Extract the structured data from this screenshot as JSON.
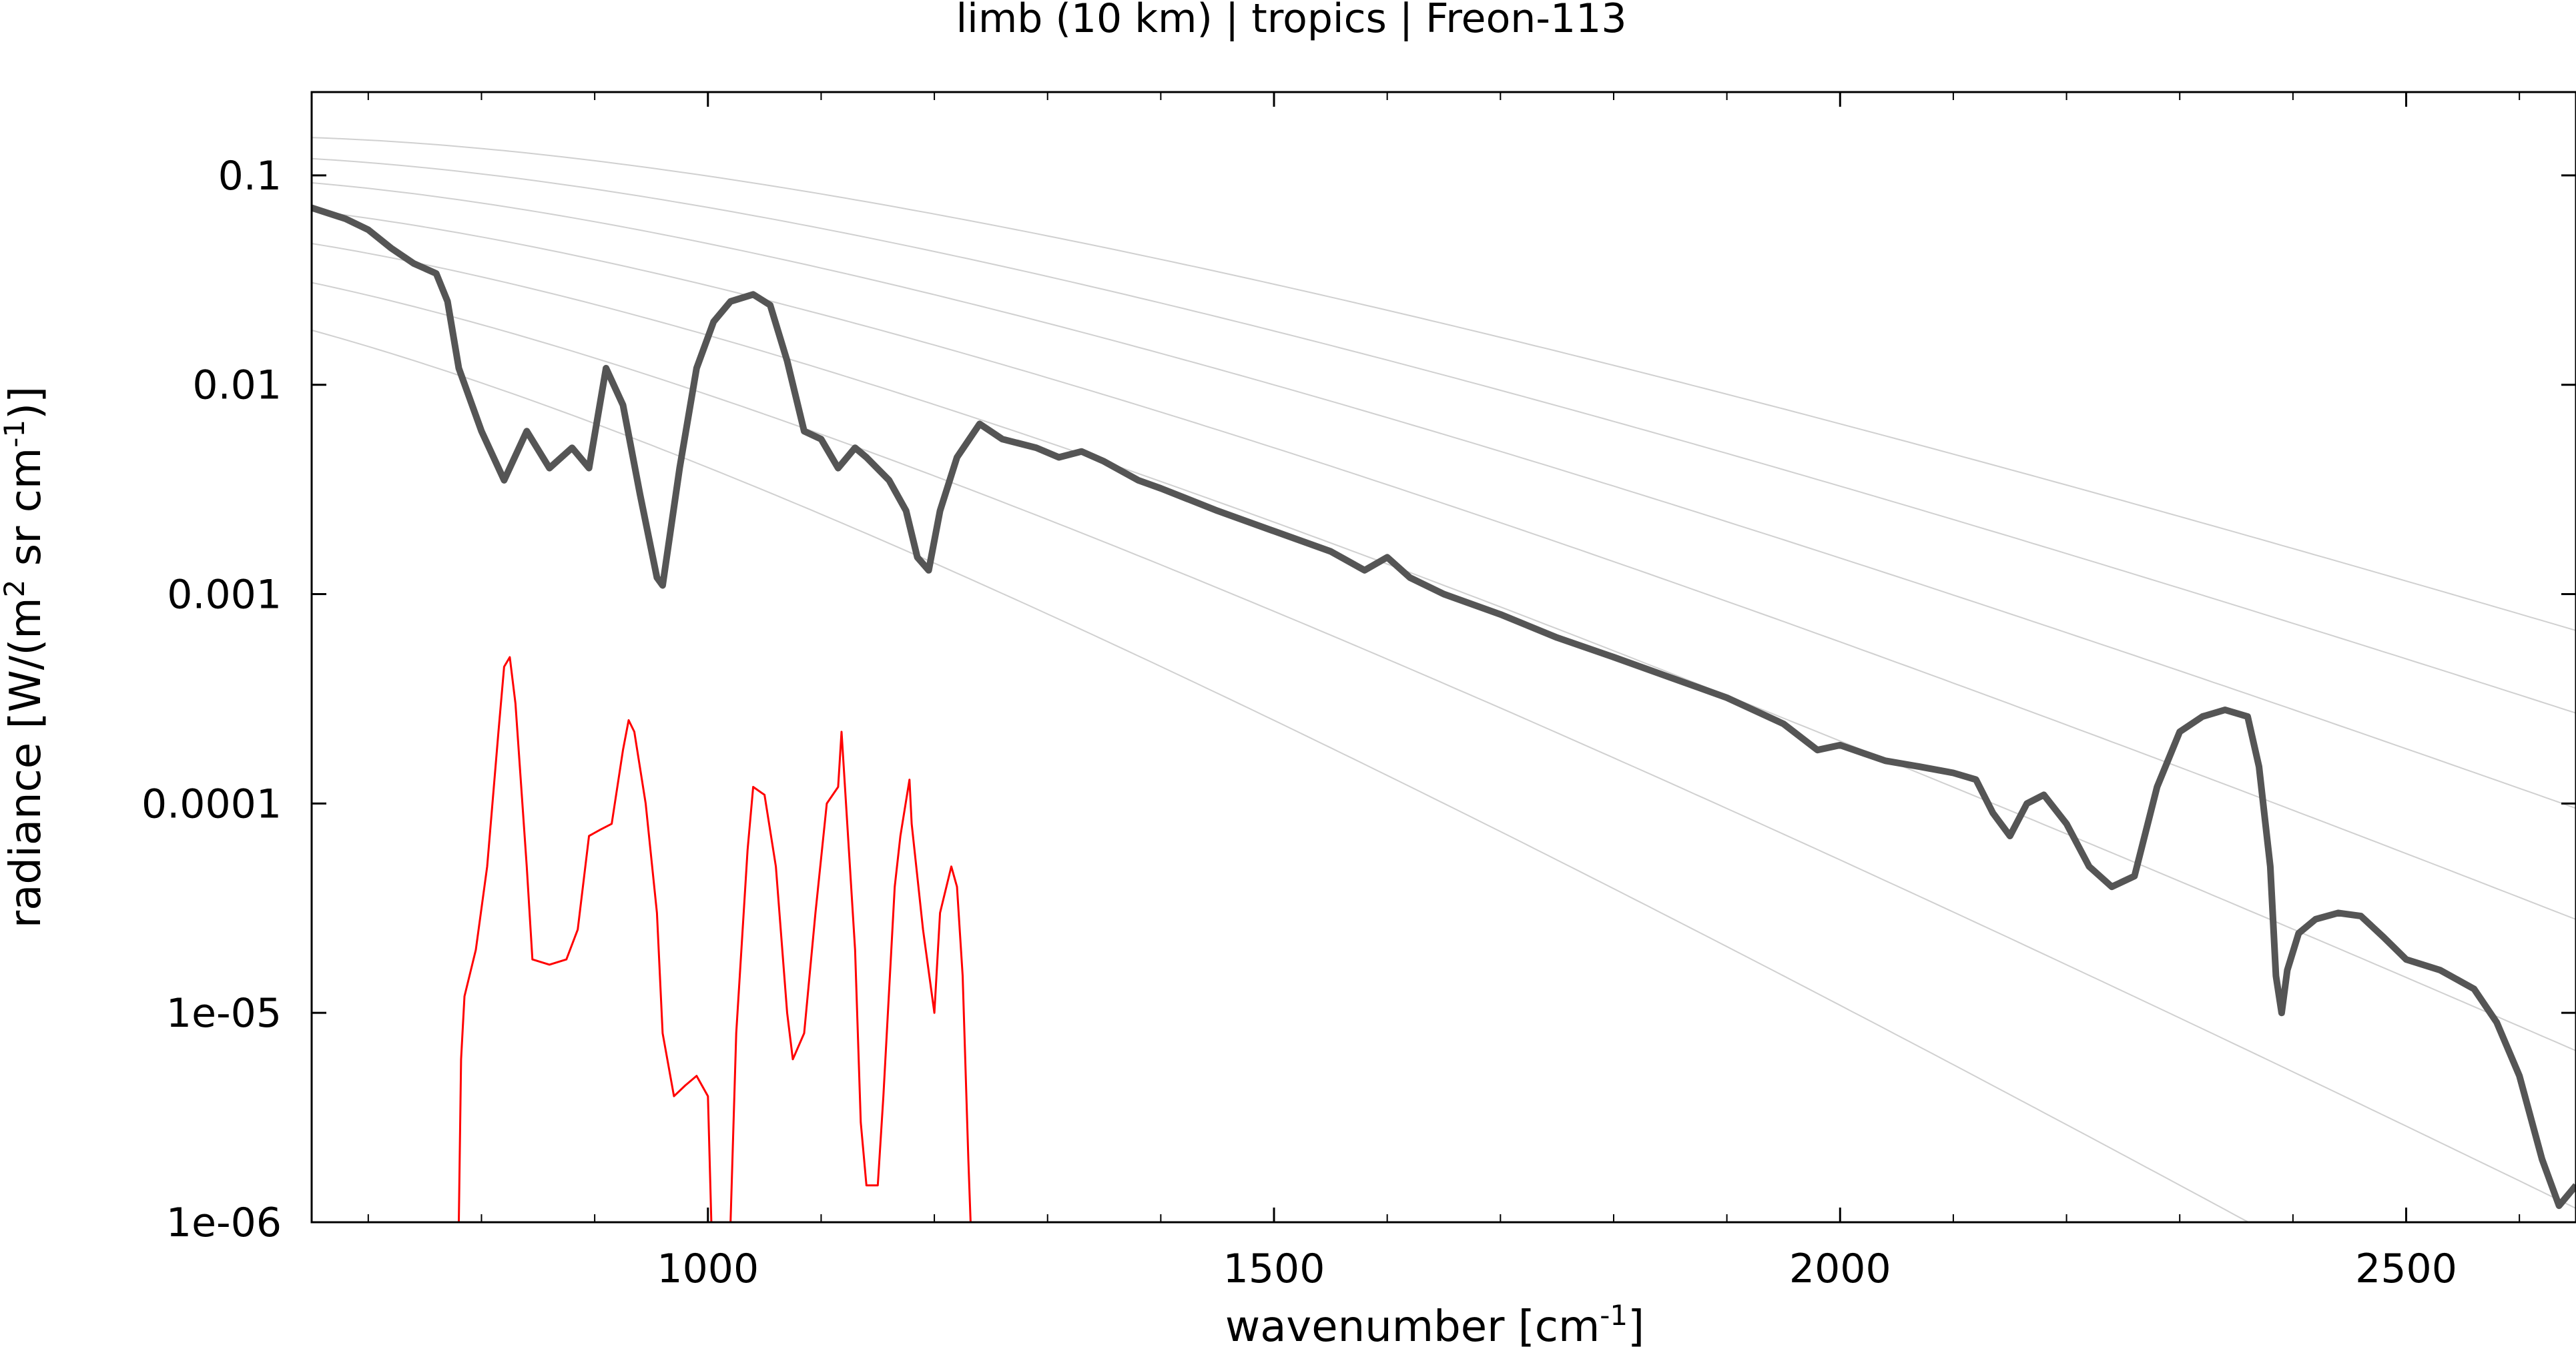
{
  "chart_data": {
    "type": "line",
    "title": "limb (10 km) | tropics | Freon-113",
    "xlabel": {
      "pre": "wavenumber [cm",
      "sup": "-1",
      "post": "]"
    },
    "ylabel": {
      "part1": "radiance [W/(m",
      "sup1": "2",
      "part2": " sr cm",
      "sup2": "-1",
      "part3": ")]"
    },
    "x_range": [
      650,
      2650
    ],
    "y_range": [
      1e-06,
      0.25
    ],
    "y_scale": "log",
    "grid": false,
    "legend": "none",
    "x_ticks": [
      1000,
      1500,
      2000,
      2500
    ],
    "x_tick_labels": [
      "1000",
      "1500",
      "2000",
      "2500"
    ],
    "y_ticks": [
      1e-06,
      1e-05,
      0.0001,
      0.001,
      0.01,
      0.1
    ],
    "y_tick_labels": [
      "1e-06",
      "1e-05",
      "0.0001",
      "0.001",
      "0.01",
      "0.1"
    ],
    "planck_reference_temperatures_K": [
      180,
      200,
      220,
      240,
      260,
      280,
      300
    ],
    "series": [
      {
        "color": "#555555",
        "points": [
          [
            650,
            0.07
          ],
          [
            680,
            0.062
          ],
          [
            700,
            0.055
          ],
          [
            720,
            0.045
          ],
          [
            740,
            0.038
          ],
          [
            760,
            0.034
          ],
          [
            770,
            0.025
          ],
          [
            780,
            0.012
          ],
          [
            800,
            0.006
          ],
          [
            820,
            0.0035
          ],
          [
            840,
            0.006
          ],
          [
            860,
            0.004
          ],
          [
            880,
            0.005
          ],
          [
            895,
            0.004
          ],
          [
            910,
            0.012
          ],
          [
            925,
            0.008
          ],
          [
            940,
            0.003
          ],
          [
            955,
            0.0012
          ],
          [
            960,
            0.0011
          ],
          [
            975,
            0.004
          ],
          [
            990,
            0.012
          ],
          [
            1005,
            0.02
          ],
          [
            1020,
            0.025
          ],
          [
            1040,
            0.027
          ],
          [
            1055,
            0.024
          ],
          [
            1070,
            0.013
          ],
          [
            1085,
            0.006
          ],
          [
            1100,
            0.0055
          ],
          [
            1115,
            0.004
          ],
          [
            1130,
            0.005
          ],
          [
            1140,
            0.0045
          ],
          [
            1160,
            0.0035
          ],
          [
            1175,
            0.0025
          ],
          [
            1185,
            0.0015
          ],
          [
            1195,
            0.0013
          ],
          [
            1205,
            0.0025
          ],
          [
            1220,
            0.0045
          ],
          [
            1240,
            0.0065
          ],
          [
            1260,
            0.0055
          ],
          [
            1290,
            0.005
          ],
          [
            1310,
            0.0045
          ],
          [
            1330,
            0.0048
          ],
          [
            1350,
            0.0043
          ],
          [
            1380,
            0.0035
          ],
          [
            1400,
            0.0032
          ],
          [
            1450,
            0.0025
          ],
          [
            1500,
            0.002
          ],
          [
            1550,
            0.0016
          ],
          [
            1580,
            0.0013
          ],
          [
            1600,
            0.0015
          ],
          [
            1620,
            0.0012
          ],
          [
            1650,
            0.001
          ],
          [
            1700,
            0.0008
          ],
          [
            1750,
            0.00062
          ],
          [
            1800,
            0.0005
          ],
          [
            1850,
            0.0004
          ],
          [
            1900,
            0.00032
          ],
          [
            1950,
            0.00024
          ],
          [
            1980,
            0.00018
          ],
          [
            2000,
            0.00019
          ],
          [
            2040,
            0.00016
          ],
          [
            2070,
            0.00015
          ],
          [
            2100,
            0.00014
          ],
          [
            2120,
            0.00013
          ],
          [
            2135,
            9e-05
          ],
          [
            2150,
            7e-05
          ],
          [
            2165,
            0.0001
          ],
          [
            2180,
            0.00011
          ],
          [
            2200,
            8e-05
          ],
          [
            2220,
            5e-05
          ],
          [
            2240,
            4e-05
          ],
          [
            2260,
            4.5e-05
          ],
          [
            2280,
            0.00012
          ],
          [
            2300,
            0.00022
          ],
          [
            2320,
            0.00026
          ],
          [
            2340,
            0.00028
          ],
          [
            2360,
            0.00026
          ],
          [
            2370,
            0.00015
          ],
          [
            2380,
            5e-05
          ],
          [
            2385,
            1.5e-05
          ],
          [
            2390,
            1e-05
          ],
          [
            2395,
            1.6e-05
          ],
          [
            2405,
            2.4e-05
          ],
          [
            2420,
            2.8e-05
          ],
          [
            2440,
            3e-05
          ],
          [
            2460,
            2.9e-05
          ],
          [
            2480,
            2.3e-05
          ],
          [
            2500,
            1.8e-05
          ],
          [
            2530,
            1.6e-05
          ],
          [
            2560,
            1.3e-05
          ],
          [
            2580,
            9e-06
          ],
          [
            2600,
            5e-06
          ],
          [
            2620,
            2e-06
          ],
          [
            2635,
            1.2e-06
          ],
          [
            2650,
            1.5e-06
          ]
        ]
      },
      {
        "color": "#ff0000",
        "points": [
          [
            780,
            1e-06
          ],
          [
            782,
            6e-06
          ],
          [
            785,
            1.2e-05
          ],
          [
            795,
            2e-05
          ],
          [
            805,
            5e-05
          ],
          [
            815,
            0.00022
          ],
          [
            820,
            0.00045
          ],
          [
            825,
            0.0005
          ],
          [
            830,
            0.0003
          ],
          [
            840,
            5e-05
          ],
          [
            845,
            1.8e-05
          ],
          [
            860,
            1.7e-05
          ],
          [
            875,
            1.8e-05
          ],
          [
            885,
            2.5e-05
          ],
          [
            895,
            7e-05
          ],
          [
            905,
            7.5e-05
          ],
          [
            915,
            8e-05
          ],
          [
            925,
            0.00018
          ],
          [
            930,
            0.00025
          ],
          [
            935,
            0.00022
          ],
          [
            945,
            0.0001
          ],
          [
            955,
            3e-05
          ],
          [
            960,
            8e-06
          ],
          [
            970,
            4e-06
          ],
          [
            980,
            4.5e-06
          ],
          [
            990,
            5e-06
          ],
          [
            1000,
            4e-06
          ],
          [
            1003,
            1e-06
          ],
          [
            1020,
            1e-06
          ],
          [
            1025,
            8e-06
          ],
          [
            1035,
            6e-05
          ],
          [
            1040,
            0.00012
          ],
          [
            1050,
            0.00011
          ],
          [
            1060,
            5e-05
          ],
          [
            1070,
            1e-05
          ],
          [
            1075,
            6e-06
          ],
          [
            1085,
            8e-06
          ],
          [
            1095,
            3e-05
          ],
          [
            1105,
            0.0001
          ],
          [
            1115,
            0.00012
          ],
          [
            1118,
            0.00022
          ],
          [
            1122,
            0.0001
          ],
          [
            1130,
            2e-05
          ],
          [
            1135,
            3e-06
          ],
          [
            1140,
            1.5e-06
          ],
          [
            1150,
            1.5e-06
          ],
          [
            1155,
            4e-06
          ],
          [
            1165,
            4e-05
          ],
          [
            1170,
            7e-05
          ],
          [
            1178,
            0.00013
          ],
          [
            1180,
            8e-05
          ],
          [
            1190,
            2.5e-05
          ],
          [
            1200,
            1e-05
          ],
          [
            1205,
            3e-05
          ],
          [
            1215,
            5e-05
          ],
          [
            1220,
            4e-05
          ],
          [
            1225,
            1.5e-05
          ],
          [
            1230,
            2e-06
          ],
          [
            1232,
            1e-06
          ]
        ]
      }
    ]
  }
}
